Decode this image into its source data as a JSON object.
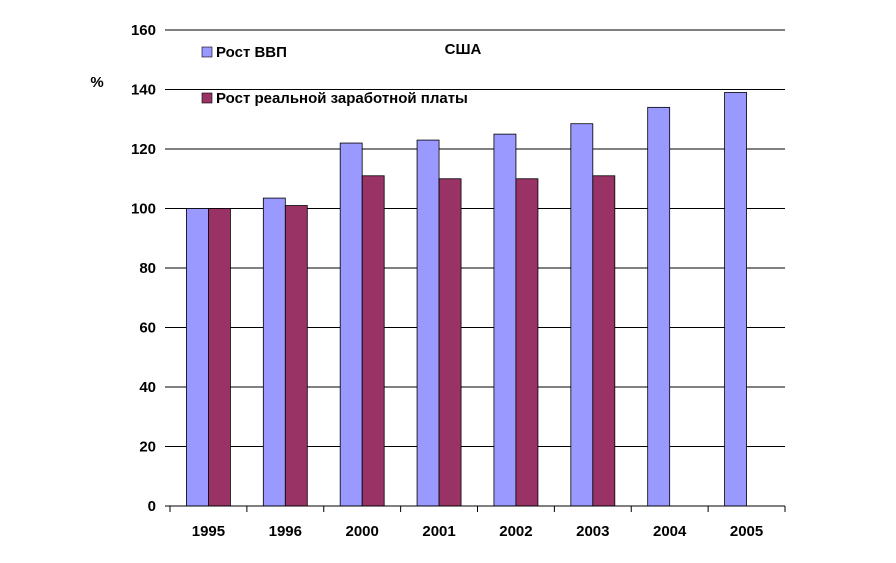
{
  "chart_data": {
    "type": "bar",
    "title": "США",
    "ylabel": "%",
    "xlabel": "",
    "categories": [
      "1995",
      "1996",
      "2000",
      "2001",
      "2002",
      "2003",
      "2004",
      "2005"
    ],
    "series": [
      {
        "name": "Рост ВВП",
        "color": "#9999ff",
        "values": [
          100,
          103.5,
          122,
          123,
          125,
          128.5,
          134,
          139
        ]
      },
      {
        "name": "Рост реальной заработной платы",
        "color": "#993366",
        "values": [
          100,
          101,
          111,
          110,
          110,
          111,
          null,
          null
        ]
      }
    ],
    "ylim": [
      0,
      160
    ],
    "yticks": [
      "0",
      "20",
      "40",
      "60",
      "80",
      "100",
      "120",
      "140",
      "160"
    ],
    "grid": true,
    "legend_position": "top-left"
  }
}
